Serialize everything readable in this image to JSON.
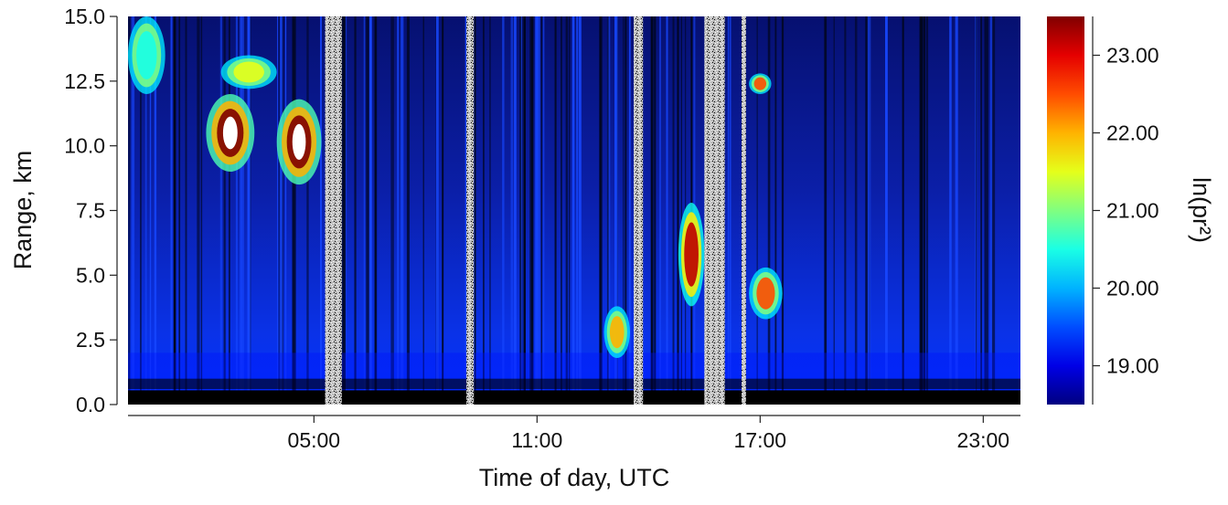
{
  "chart_data": {
    "type": "heatmap",
    "title": "",
    "xlabel": "Time of day, UTC",
    "ylabel": "Range, km",
    "colorbar_label": "ln(pr²)",
    "xlim_hours": [
      0,
      24
    ],
    "ylim": [
      0,
      15
    ],
    "x_ticks": [
      {
        "hour": 5,
        "label": "05:00"
      },
      {
        "hour": 11,
        "label": "11:00"
      },
      {
        "hour": 17,
        "label": "17:00"
      },
      {
        "hour": 23,
        "label": "23:00"
      }
    ],
    "y_ticks": [
      {
        "value": 0.0,
        "label": "0.0"
      },
      {
        "value": 2.5,
        "label": "2.5"
      },
      {
        "value": 5.0,
        "label": "5.0"
      },
      {
        "value": 7.5,
        "label": "7.5"
      },
      {
        "value": 10.0,
        "label": "10.0"
      },
      {
        "value": 12.5,
        "label": "12.5"
      },
      {
        "value": 15.0,
        "label": "15.0"
      }
    ],
    "colorbar": {
      "min": 18.5,
      "max": 23.5,
      "colormap": "jet",
      "ticks": [
        {
          "value": 19.0,
          "label": "19.00"
        },
        {
          "value": 20.0,
          "label": "20.00"
        },
        {
          "value": 21.0,
          "label": "21.00"
        },
        {
          "value": 22.0,
          "label": "22.00"
        },
        {
          "value": 23.0,
          "label": "23.00"
        }
      ]
    },
    "no_data_intervals_hours": [
      [
        5.3,
        5.75
      ],
      [
        9.1,
        9.3
      ],
      [
        13.6,
        13.85
      ],
      [
        15.5,
        16.05
      ],
      [
        16.5,
        16.62
      ]
    ],
    "cloud_features": [
      {
        "t_start": 2.1,
        "t_end": 3.4,
        "r_low": 9.0,
        "r_high": 12.0,
        "ln_pr2": 23.5
      },
      {
        "t_start": 4.0,
        "t_end": 5.2,
        "r_low": 8.5,
        "r_high": 11.8,
        "ln_pr2": 23.5
      },
      {
        "t_start": 2.5,
        "t_end": 4.0,
        "r_low": 12.2,
        "r_high": 13.5,
        "ln_pr2": 21.5
      },
      {
        "t_start": 0.0,
        "t_end": 1.0,
        "r_low": 12.0,
        "r_high": 15.0,
        "ln_pr2": 20.5
      },
      {
        "t_start": 14.8,
        "t_end": 15.5,
        "r_low": 3.8,
        "r_high": 7.8,
        "ln_pr2": 23.2
      },
      {
        "t_start": 16.7,
        "t_end": 17.6,
        "r_low": 3.3,
        "r_high": 5.3,
        "ln_pr2": 22.5
      },
      {
        "t_start": 16.7,
        "t_end": 17.3,
        "r_low": 12.0,
        "r_high": 12.8,
        "ln_pr2": 22.5
      },
      {
        "t_start": 12.8,
        "t_end": 13.5,
        "r_low": 1.8,
        "r_high": 3.8,
        "ln_pr2": 22.0
      }
    ],
    "boundary_layer": {
      "r_low": 0.0,
      "r_high": 2.0,
      "ln_pr2": 19.2
    }
  }
}
